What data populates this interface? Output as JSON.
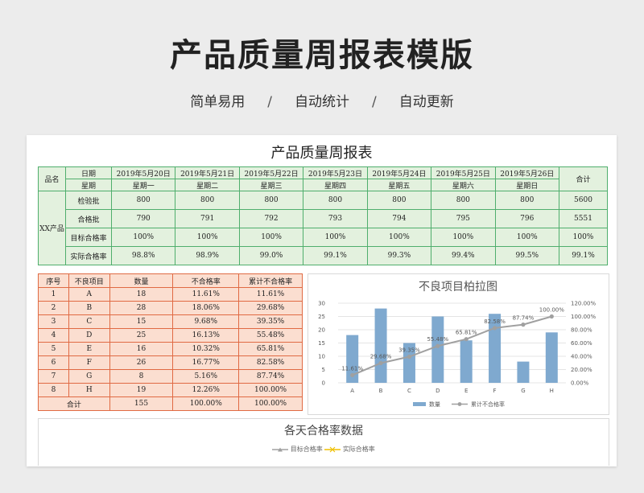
{
  "hero": {
    "title": "产品质量周报表模版",
    "subtitle_items": [
      "简单易用",
      "自动统计",
      "自动更新"
    ],
    "subtitle_sep": "/"
  },
  "sheet": {
    "title": "产品质量周报表",
    "weekly": {
      "product_label": "品名",
      "product_name": "XX产品",
      "date_label": "日期",
      "weekday_label": "星期",
      "total_label": "合计",
      "dates": [
        "2019年5月20日",
        "2019年5月21日",
        "2019年5月22日",
        "2019年5月23日",
        "2019年5月24日",
        "2019年5月25日",
        "2019年5月26日"
      ],
      "weekdays": [
        "星期一",
        "星期二",
        "星期三",
        "星期四",
        "星期五",
        "星期六",
        "星期日"
      ],
      "rows": [
        {
          "label": "检验批",
          "values": [
            "800",
            "800",
            "800",
            "800",
            "800",
            "800",
            "800"
          ],
          "total": "5600"
        },
        {
          "label": "合格批",
          "values": [
            "790",
            "791",
            "792",
            "793",
            "794",
            "795",
            "796"
          ],
          "total": "5551"
        },
        {
          "label": "目标合格率",
          "values": [
            "100%",
            "100%",
            "100%",
            "100%",
            "100%",
            "100%",
            "100%"
          ],
          "total": "100%"
        },
        {
          "label": "实际合格率",
          "values": [
            "98.8%",
            "98.9%",
            "99.0%",
            "99.1%",
            "99.3%",
            "99.4%",
            "99.5%"
          ],
          "total": "99.1%"
        }
      ]
    },
    "defects": {
      "headers": [
        "序号",
        "不良项目",
        "数量",
        "不合格率",
        "累计不合格率"
      ],
      "rows": [
        [
          "1",
          "A",
          "18",
          "11.61%",
          "11.61%"
        ],
        [
          "2",
          "B",
          "28",
          "18.06%",
          "29.68%"
        ],
        [
          "3",
          "C",
          "15",
          "9.68%",
          "39.35%"
        ],
        [
          "4",
          "D",
          "25",
          "16.13%",
          "55.48%"
        ],
        [
          "5",
          "E",
          "16",
          "10.32%",
          "65.81%"
        ],
        [
          "6",
          "F",
          "26",
          "16.77%",
          "82.58%"
        ],
        [
          "7",
          "G",
          "8",
          "5.16%",
          "87.74%"
        ],
        [
          "8",
          "H",
          "19",
          "12.26%",
          "100.00%"
        ]
      ],
      "total": {
        "label": "合计",
        "qty": "155",
        "rate": "100.00%",
        "cum": "100.00%"
      }
    },
    "daily_chart": {
      "title": "各天合格率数据",
      "legend": [
        "目标合格率",
        "实际合格率"
      ]
    }
  },
  "chart_data": [
    {
      "type": "bar",
      "title": "不良项目柏拉图",
      "categories": [
        "A",
        "B",
        "C",
        "D",
        "E",
        "F",
        "G",
        "H"
      ],
      "series": [
        {
          "name": "数量",
          "type": "bar",
          "values": [
            18,
            28,
            15,
            25,
            16,
            26,
            8,
            19
          ],
          "color": "#7fa9cf"
        },
        {
          "name": "累计不合格率",
          "type": "line",
          "values": [
            11.61,
            29.68,
            39.35,
            55.48,
            65.81,
            82.58,
            87.74,
            100.0
          ],
          "color": "#a0a0a0"
        }
      ],
      "data_labels": [
        "11.61%",
        "29.68%",
        "39.35%",
        "55.48%",
        "65.81%",
        "82.58%",
        "87.74%",
        "100.00%"
      ],
      "ylim": [
        0,
        30
      ],
      "yticks": [
        "0",
        "5",
        "10",
        "15",
        "20",
        "25",
        "30"
      ],
      "y2lim": [
        0,
        120
      ],
      "y2ticks": [
        "0.00%",
        "20.00%",
        "40.00%",
        "60.00%",
        "80.00%",
        "100.00%",
        "120.00%"
      ],
      "legend_position": "bottom"
    }
  ]
}
